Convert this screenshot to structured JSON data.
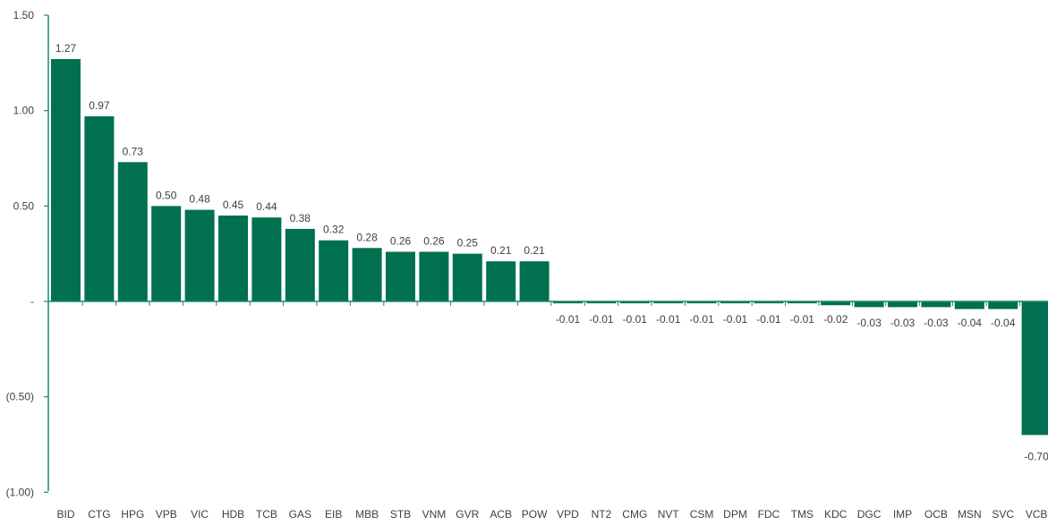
{
  "chart_data": {
    "type": "bar",
    "categories": [
      "BID",
      "CTG",
      "HPG",
      "VPB",
      "VIC",
      "HDB",
      "TCB",
      "GAS",
      "EIB",
      "MBB",
      "STB",
      "VNM",
      "GVR",
      "ACB",
      "POW",
      "VPD",
      "NT2",
      "CMG",
      "NVT",
      "CSM",
      "DPM",
      "FDC",
      "TMS",
      "KDC",
      "DGC",
      "IMP",
      "OCB",
      "MSN",
      "SVC",
      "VCB"
    ],
    "values": [
      1.27,
      0.97,
      0.73,
      0.5,
      0.48,
      0.45,
      0.44,
      0.38,
      0.32,
      0.28,
      0.26,
      0.26,
      0.25,
      0.21,
      0.21,
      -0.01,
      -0.01,
      -0.01,
      -0.01,
      -0.01,
      -0.01,
      -0.01,
      -0.01,
      -0.02,
      -0.03,
      -0.03,
      -0.03,
      -0.04,
      -0.04,
      -0.7
    ],
    "data_labels": [
      "1.27",
      "0.97",
      "0.73",
      "0.50",
      "0.48",
      "0.45",
      "0.44",
      "0.38",
      "0.32",
      "0.28",
      "0.26",
      "0.26",
      "0.25",
      "0.21",
      "0.21",
      "-0.01",
      "-0.01",
      "-0.01",
      "-0.01",
      "-0.01",
      "-0.01",
      "-0.01",
      "-0.01",
      "-0.02",
      "-0.03",
      "-0.03",
      "-0.03",
      "-0.04",
      "-0.04",
      "-0.70"
    ],
    "yticks": [
      1.5,
      1.0,
      0.5,
      0,
      -0.5,
      -1.0
    ],
    "ytick_labels": [
      "1.50",
      "1.00",
      "0.50",
      "-",
      "(0.50)",
      "(1.00)"
    ],
    "ylim": [
      -1.0,
      1.5
    ],
    "title": "",
    "xlabel": "",
    "ylabel": "",
    "grid": false,
    "bar_color": "#007050",
    "axis_color": "#1f8a66"
  }
}
